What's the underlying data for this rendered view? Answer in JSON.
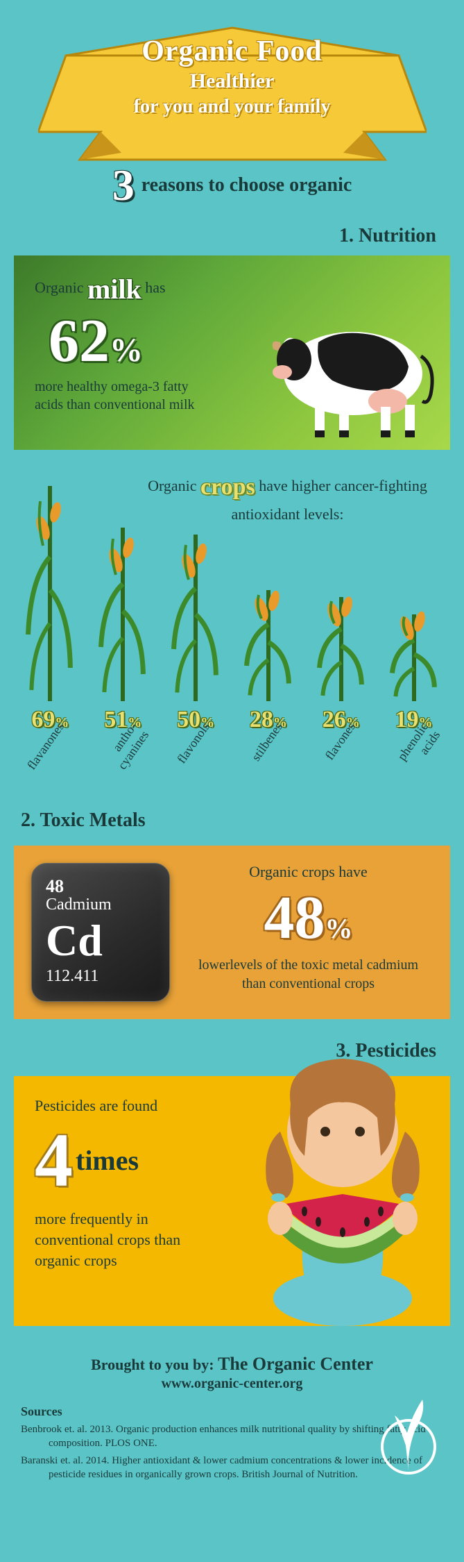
{
  "colors": {
    "page_bg": "#5bc4c6",
    "banner_fill": "#f5c938",
    "banner_stroke": "#b8860b",
    "nutrition_panel_gradient": [
      "#3d7a2a",
      "#5fa83a",
      "#8cc63f",
      "#a8d84a"
    ],
    "toxic_panel_bg": "#e8a238",
    "pesticide_panel_bg": "#f5b800",
    "text_dark": "#1a3a3a",
    "accent_white": "#ffffff",
    "crops_pct_fill": "#e8e070",
    "crops_pct_stroke": "#4a6a1a"
  },
  "banner": {
    "line1": "Organic Food",
    "line2": "Healthier",
    "line3": "for you and your family"
  },
  "subtitle": {
    "big_number": "3",
    "rest": "reasons to choose organic"
  },
  "nutrition": {
    "heading": "1. Nutrition",
    "milk": {
      "pre": "Organic",
      "em": "milk",
      "post": "has",
      "pct": "62",
      "pct_sign": "%",
      "rest": "more healthy omega-3 fatty acids than conventional milk"
    },
    "crops_intro": {
      "pre": "Organic",
      "em": "crops",
      "post": "have higher cancer-fighting antioxidant levels:"
    },
    "crops": [
      {
        "pct": "69",
        "label": "flavanones",
        "stalk_height": 320
      },
      {
        "pct": "51",
        "label": "antho-\ncyanines",
        "stalk_height": 260
      },
      {
        "pct": "50",
        "label": "flavonols",
        "stalk_height": 250
      },
      {
        "pct": "28",
        "label": "stilbenes",
        "stalk_height": 170
      },
      {
        "pct": "26",
        "label": "flavones",
        "stalk_height": 160
      },
      {
        "pct": "19",
        "label": "phenolic\nacids",
        "stalk_height": 135
      }
    ]
  },
  "toxic": {
    "heading": "2. Toxic Metals",
    "element": {
      "number": "48",
      "name": "Cadmium",
      "symbol": "Cd",
      "mass": "112.411"
    },
    "line1": "Organic crops have",
    "pct": "48",
    "rest": "lowerlevels of the toxic metal cadmium than conventional crops"
  },
  "pesticides": {
    "heading": "3. Pesticides",
    "line1": "Pesticides are found",
    "big": "4",
    "times": "times",
    "rest": "more frequently in conventional crops than organic crops"
  },
  "footer": {
    "brought_pre": "Brought to you by:",
    "brand": "The Organic Center",
    "url": "www.organic-center.org",
    "sources_heading": "Sources",
    "sources": [
      "Benbrook et. al. 2013.  Organic production enhances milk nutritional quality by shifting fatty acid composition. PLOS ONE.",
      "Baranski et. al. 2014.  Higher antioxidant & lower cadmium concentrations & lower incidence of pesticide residues in organically grown crops.  British Journal of Nutrition."
    ]
  }
}
